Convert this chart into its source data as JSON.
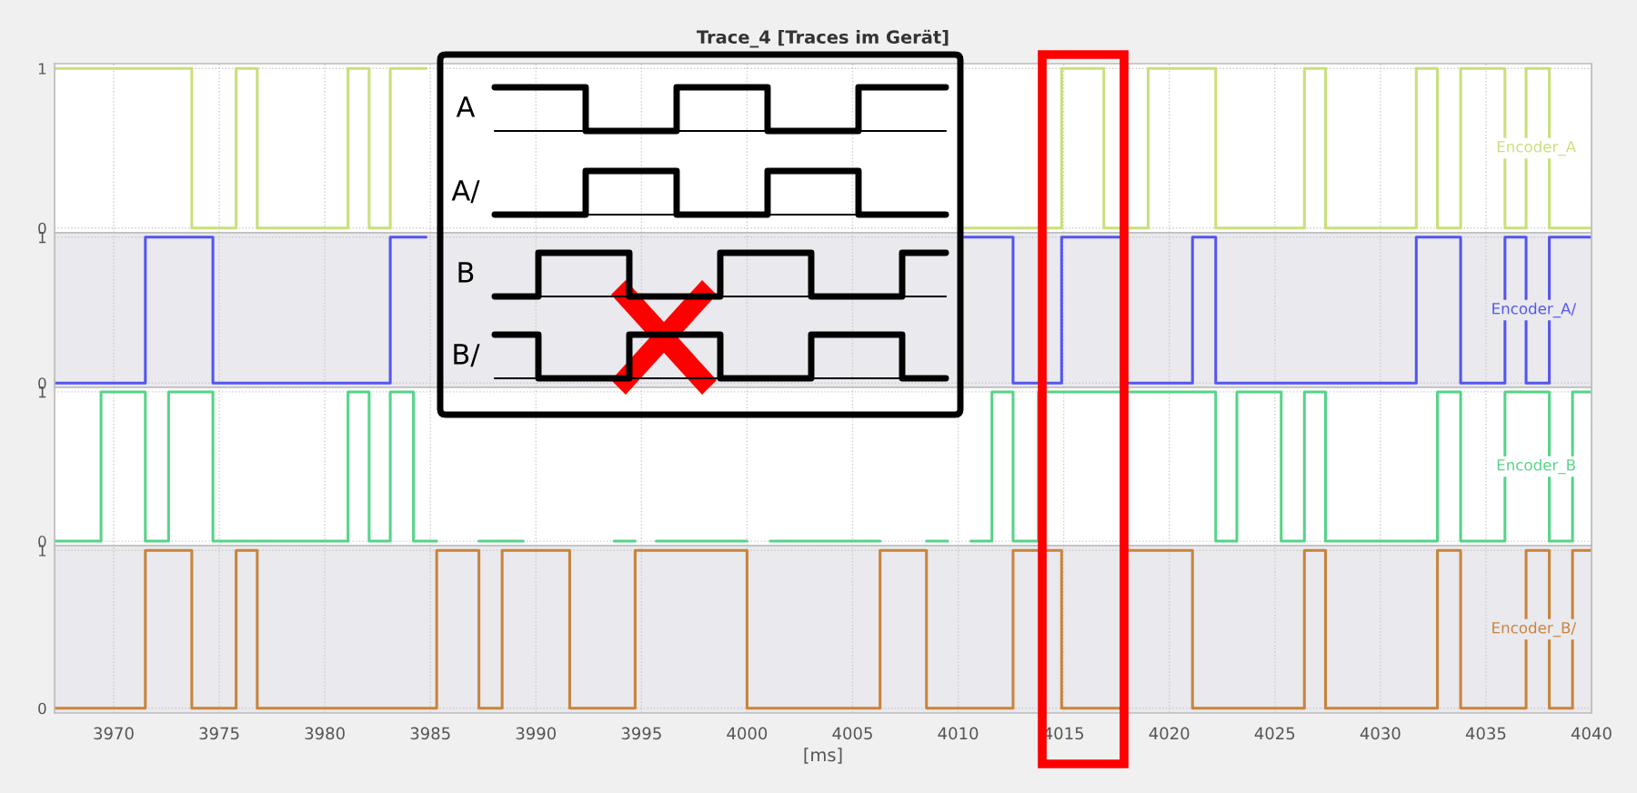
{
  "chart_data": [
    {
      "type": "step",
      "title": "Trace_4 [Traces im Gerät]",
      "xlim": [
        3967.2,
        4040
      ],
      "ylim": [
        -0.03,
        1.03
      ],
      "yticks": [
        0,
        1
      ],
      "xticks": [
        3970,
        3975,
        3980,
        3985,
        3990,
        3995,
        4000,
        4005,
        4010,
        4015,
        4020,
        4025,
        4030,
        4035,
        4040
      ],
      "tick_labels": "y",
      "grid": true,
      "legend": false,
      "annotations": [
        "A",
        "A/",
        "B",
        "B/"
      ],
      "series": [
        {
          "name": "Encoder_A",
          "color": "#c8e07a",
          "x": [
            3967.2,
            3973.7,
            3975.8,
            3976.8,
            3981.1,
            3982.1,
            3983.1,
            3984.8,
            4010.3,
            4014.9,
            4016.9,
            4019.0,
            4022.2,
            4026.4,
            4027.4,
            4031.7,
            4032.7,
            4033.8,
            4035.9,
            4036.9,
            4038.0,
            4040
          ],
          "values": [
            1,
            0,
            1,
            0,
            1,
            0,
            1,
            null,
            0,
            1,
            0,
            1,
            0,
            1,
            0,
            1,
            0,
            1,
            0,
            1,
            0,
            0
          ]
        }
      ]
    },
    {
      "type": "step",
      "xlim": [
        3967.2,
        4040
      ],
      "ylim": [
        -0.03,
        1.03
      ],
      "yticks": [
        0,
        1
      ],
      "xticks": [
        3970,
        3975,
        3980,
        3985,
        3990,
        3995,
        4000,
        4005,
        4010,
        4015,
        4020,
        4025,
        4030,
        4035,
        4040
      ],
      "tick_labels": "y",
      "grid": true,
      "legend": false,
      "series": [
        {
          "name": "Encoder_A/",
          "color": "#5555ee",
          "x": [
            3967.2,
            3971.5,
            3974.7,
            3983.1,
            3984.8,
            4010.3,
            4012.6,
            4014.9,
            4017.8,
            4021.1,
            4022.2,
            4031.7,
            4033.8,
            4035.9,
            4036.9,
            4038.0,
            4040
          ],
          "values": [
            0,
            1,
            0,
            1,
            null,
            1,
            0,
            1,
            0,
            1,
            0,
            1,
            0,
            1,
            0,
            1,
            1
          ]
        }
      ]
    },
    {
      "type": "step",
      "xlim": [
        3967.2,
        4040
      ],
      "ylim": [
        -0.03,
        1.03
      ],
      "yticks": [
        0,
        1
      ],
      "xticks": [
        3970,
        3975,
        3980,
        3985,
        3990,
        3995,
        4000,
        4005,
        4010,
        4015,
        4020,
        4025,
        4030,
        4035,
        4040
      ],
      "tick_labels": "y",
      "grid": true,
      "legend": false,
      "series": [
        {
          "name": "Encoder_B",
          "color": "#55d488",
          "x": [
            3967.2,
            3969.4,
            3971.5,
            3972.6,
            3974.7,
            3981.1,
            3982.1,
            3983.1,
            3984.2,
            3985.3,
            3987.3,
            3989.4,
            3993.7,
            3994.7,
            3995.7,
            4000.0,
            4001.1,
            4006.3,
            4008.5,
            4009.5,
            4010.6,
            4011.6,
            4012.6,
            4013.8,
            4022.2,
            4023.2,
            4025.3,
            4026.4,
            4027.4,
            4032.7,
            4033.8,
            4035.9,
            4038.0,
            4039.1,
            4040
          ],
          "values": [
            0,
            1,
            0,
            1,
            0,
            1,
            0,
            1,
            0,
            null,
            0,
            null,
            0,
            null,
            0,
            null,
            0,
            null,
            0,
            null,
            0,
            1,
            0,
            1,
            0,
            1,
            0,
            1,
            0,
            1,
            0,
            1,
            0,
            1,
            1
          ]
        }
      ]
    },
    {
      "type": "step",
      "xlabel": "[ms]",
      "xlim": [
        3967.2,
        4040
      ],
      "ylim": [
        -0.03,
        1.03
      ],
      "yticks": [
        0,
        1
      ],
      "xticks": [
        3970,
        3975,
        3980,
        3985,
        3990,
        3995,
        4000,
        4005,
        4010,
        4015,
        4020,
        4025,
        4030,
        4035,
        4040
      ],
      "grid": true,
      "legend": false,
      "series": [
        {
          "name": "Encoder_B/",
          "color": "#c8843c",
          "x": [
            3967.2,
            3971.5,
            3973.7,
            3975.8,
            3976.8,
            3985.3,
            3987.3,
            3988.4,
            3991.6,
            3994.7,
            4000.0,
            4006.3,
            4008.5,
            4012.6,
            4014.9,
            4017.8,
            4021.1,
            4026.4,
            4027.4,
            4032.7,
            4033.8,
            4036.9,
            4038.0,
            4039.1,
            4040
          ],
          "values": [
            0,
            1,
            0,
            1,
            0,
            1,
            0,
            1,
            0,
            1,
            0,
            1,
            0,
            1,
            0,
            1,
            0,
            1,
            0,
            1,
            0,
            1,
            0,
            1,
            1
          ]
        }
      ]
    }
  ]
}
